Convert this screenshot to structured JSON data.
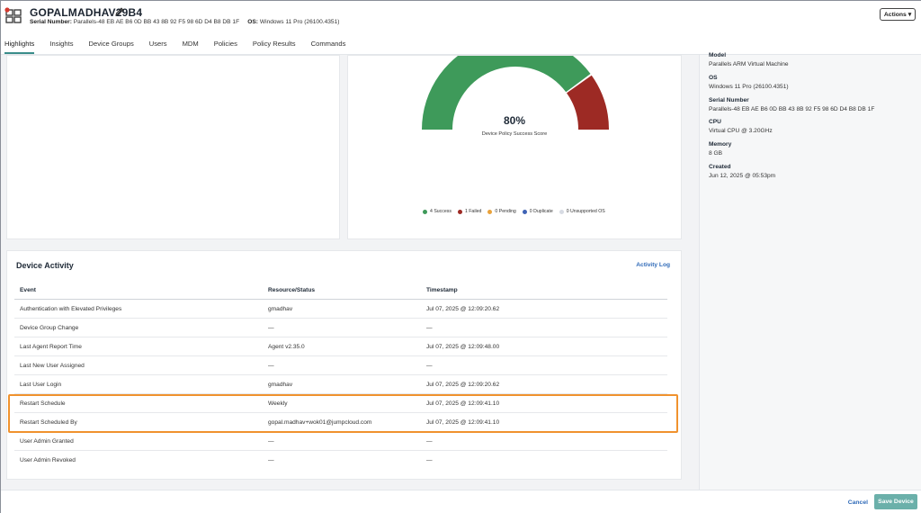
{
  "device": {
    "name": "GOPALMADHAV29B4",
    "serial_label": "Serial Number:",
    "serial_value": "Parallels-48 EB AE B6 0D BB 43 8B 92 F5 98 6D D4 B8 DB 1F",
    "os_label": "OS:",
    "os_value": "Windows 11 Pro (26100.4351)"
  },
  "header": {
    "actions_label": "Actions ▾"
  },
  "tabs": [
    {
      "label": "Highlights",
      "active": true
    },
    {
      "label": "Insights"
    },
    {
      "label": "Device Groups"
    },
    {
      "label": "Users"
    },
    {
      "label": "MDM"
    },
    {
      "label": "Policies"
    },
    {
      "label": "Policy Results"
    },
    {
      "label": "Commands"
    }
  ],
  "gauge": {
    "percent_text": "80%",
    "value": 0.8,
    "label": "Device Policy Success Score",
    "colors": {
      "success": "#3e9a5a",
      "failed": "#9d2a24"
    },
    "legend": [
      {
        "label": "4 Success",
        "color": "#3e9a5a"
      },
      {
        "label": "1 Failed",
        "color": "#9d2a24"
      },
      {
        "label": "0 Pending",
        "color": "#e9a23b"
      },
      {
        "label": "0 Duplicate",
        "color": "#3f63b5"
      },
      {
        "label": "0 Unsupported OS",
        "color": "#d7dbe3"
      }
    ]
  },
  "details": [
    {
      "label": "Model",
      "value": "Parallels ARM Virtual Machine"
    },
    {
      "label": "OS",
      "value": "Windows 11 Pro (26100.4351)"
    },
    {
      "label": "Serial Number",
      "value": "Parallels-48 EB AE B6 0D BB 43 8B 92 F5 98 6D D4 B8 DB 1F"
    },
    {
      "label": "CPU",
      "value": "Virtual CPU @ 3.20GHz"
    },
    {
      "label": "Memory",
      "value": "8 GB"
    },
    {
      "label": "Created",
      "value": "Jun 12, 2025 @ 05:53pm"
    }
  ],
  "activity": {
    "title": "Device Activity",
    "log_link": "Activity Log",
    "columns": [
      "Event",
      "Resource/Status",
      "Timestamp"
    ],
    "rows": [
      [
        "Authentication with Elevated Privileges",
        "gmadhav",
        "Jul 07, 2025 @ 12:09:20.62"
      ],
      [
        "Device Group Change",
        "—",
        "—"
      ],
      [
        "Last Agent Report Time",
        "Agent v2.35.0",
        "Jul 07, 2025 @ 12:09:48.00"
      ],
      [
        "Last New User Assigned",
        "—",
        "—"
      ],
      [
        "Last User Login",
        "gmadhav",
        "Jul 07, 2025 @ 12:09:20.62"
      ],
      [
        "Restart Schedule",
        "Weekly",
        "Jul 07, 2025 @ 12:09:41.10"
      ],
      [
        "Restart Scheduled By",
        "gopal.madhav+wok01@jumpcloud.com",
        "Jul 07, 2025 @ 12:09:41.10"
      ],
      [
        "User Admin Granted",
        "—",
        "—"
      ],
      [
        "User Admin Revoked",
        "—",
        "—"
      ]
    ],
    "highlight_color": "#f0922e"
  },
  "footer": {
    "cancel_label": "Cancel",
    "save_label": "Save Device"
  }
}
